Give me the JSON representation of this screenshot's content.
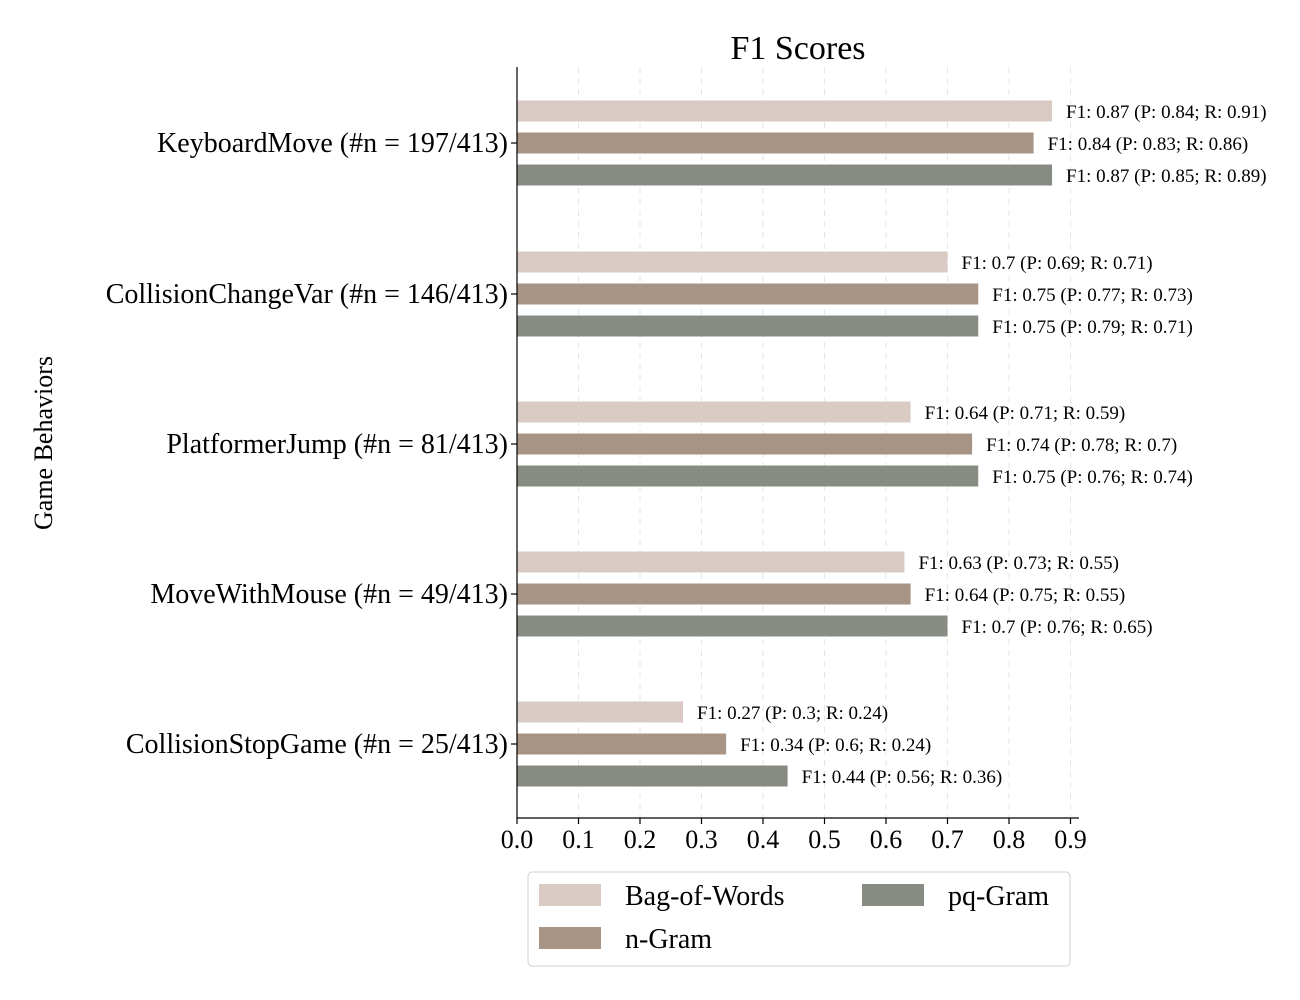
{
  "chart_data": {
    "type": "bar",
    "orientation": "horizontal",
    "title": "F1 Scores",
    "xlabel": "",
    "ylabel": "Game Behaviors",
    "xlim": [
      0,
      0.92
    ],
    "xticks": [
      "0.0",
      "0.1",
      "0.2",
      "0.3",
      "0.4",
      "0.5",
      "0.6",
      "0.7",
      "0.8",
      "0.9"
    ],
    "xtick_values": [
      0.0,
      0.1,
      0.2,
      0.3,
      0.4,
      0.5,
      0.6,
      0.7,
      0.8,
      0.9
    ],
    "grid": "vertical dashed",
    "legend_position": "bottom-center",
    "categories": [
      "KeyboardMove (#n = 197/413)",
      "CollisionChangeVar (#n = 146/413)",
      "PlatformerJump (#n = 81/413)",
      "MoveWithMouse (#n = 49/413)",
      "CollisionStopGame (#n = 25/413)"
    ],
    "series": [
      {
        "name": "Bag-of-Words",
        "color": "#d9cbc3",
        "values": [
          0.87,
          0.7,
          0.64,
          0.63,
          0.27
        ],
        "labels": [
          "F1: 0.87 (P: 0.84; R: 0.91)",
          "F1: 0.7 (P: 0.69; R: 0.71)",
          "F1: 0.64 (P: 0.71; R: 0.59)",
          "F1: 0.63 (P: 0.73; R: 0.55)",
          "F1: 0.27 (P: 0.3; R: 0.24)"
        ]
      },
      {
        "name": "n-Gram",
        "color": "#a89485",
        "values": [
          0.84,
          0.75,
          0.74,
          0.64,
          0.34
        ],
        "labels": [
          "F1: 0.84 (P: 0.83; R: 0.86)",
          "F1: 0.75 (P: 0.77; R: 0.73)",
          "F1: 0.74 (P: 0.78; R: 0.7)",
          "F1: 0.64 (P: 0.75; R: 0.55)",
          "F1: 0.34 (P: 0.6; R: 0.24)"
        ]
      },
      {
        "name": "pq-Gram",
        "color": "#878c83",
        "values": [
          0.87,
          0.75,
          0.75,
          0.7,
          0.44
        ],
        "labels": [
          "F1: 0.87 (P: 0.85; R: 0.89)",
          "F1: 0.75 (P: 0.79; R: 0.71)",
          "F1: 0.75 (P: 0.76; R: 0.74)",
          "F1: 0.7 (P: 0.76; R: 0.65)",
          "F1: 0.44 (P: 0.56; R: 0.36)"
        ]
      }
    ]
  }
}
